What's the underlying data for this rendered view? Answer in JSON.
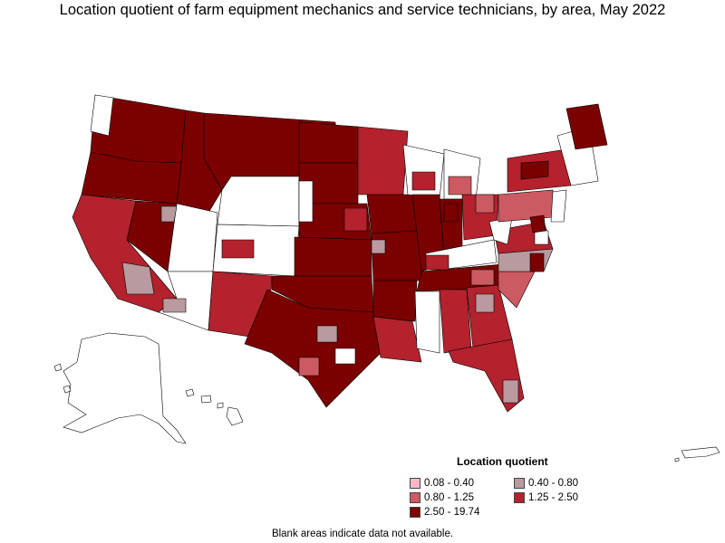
{
  "title": "Location quotient of farm equipment mechanics and service technicians, by area, May 2022",
  "legend": {
    "title": "Location quotient",
    "items": [
      {
        "label": "0.08 - 0.40",
        "color": "#f7b8c4"
      },
      {
        "label": "0.40 - 0.80",
        "color": "#b99a9e"
      },
      {
        "label": "0.80 - 1.25",
        "color": "#cc5a63"
      },
      {
        "label": "1.25 - 2.50",
        "color": "#b3222d"
      },
      {
        "label": "2.50 - 19.74",
        "color": "#7b0000"
      }
    ]
  },
  "footnote": "Blank areas indicate data not available.",
  "colors": {
    "no_data": "#ffffff",
    "border": "#000000"
  }
}
